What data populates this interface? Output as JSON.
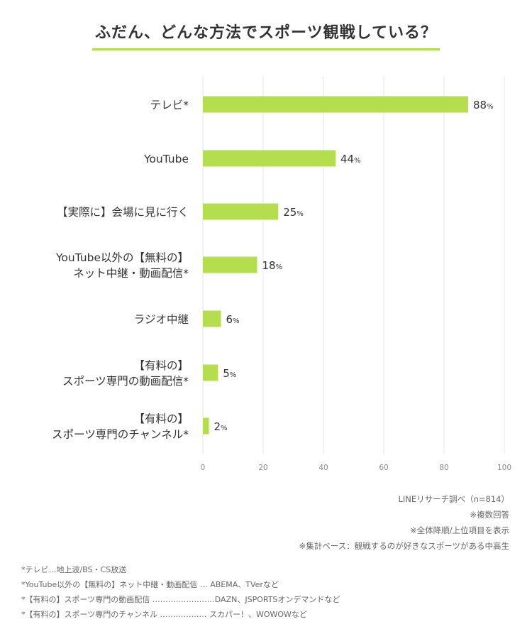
{
  "title": "ふだん、どんな方法でスポーツ観戦している？",
  "colors": {
    "bar": "#b5de4f",
    "title_rule": "#b5de4f",
    "grid": "#e6e6e6"
  },
  "chart_data": {
    "type": "bar",
    "orientation": "horizontal",
    "categories": [
      [
        "テレビ*"
      ],
      [
        "YouTube"
      ],
      [
        "【実際に】会場に見に行く"
      ],
      [
        "YouTube以外の【無料の】",
        "ネット中継・動画配信*"
      ],
      [
        "ラジオ中継"
      ],
      [
        "【有料の】",
        "スポーツ専門の動画配信*"
      ],
      [
        "【有料の】",
        "スポーツ専門のチャンネル*"
      ]
    ],
    "values": [
      88,
      44,
      25,
      18,
      6,
      5,
      2
    ],
    "value_unit": "%",
    "xlim": [
      0,
      100
    ],
    "xticks": [
      0,
      20,
      40,
      60,
      80,
      100
    ],
    "grid": true
  },
  "notes": [
    "LINEリサーチ調べ（n=814）",
    "※複数回答",
    "※全体降順/上位項目を表示",
    "※集計ベース：観戦するのが好きなスポーツがある中高生"
  ],
  "footnotes": [
    "*テレビ…地上波/BS・CS放送",
    "*YouTube以外の【無料の】ネット中継・動画配信 … ABEMA、TVerなど",
    "*【有料の】スポーツ専門の動画配信 ……………………DAZN、JSPORTSオンデマンドなど",
    "*【有料の】スポーツ専門のチャンネル ……………… スカパー！、WOWOWなど"
  ]
}
